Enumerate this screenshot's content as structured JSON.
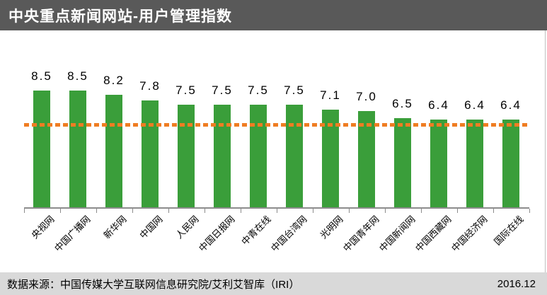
{
  "header": {
    "title": "中央重点新闻网站-用户管理指数"
  },
  "footer": {
    "source_label": "数据来源：中国传媒大学互联网信息研究院/艾利艾智库（IRI）",
    "date": "2016.12"
  },
  "colors": {
    "header_bg": "#595959",
    "header_text": "#ffffff",
    "footer_bg": "#d9d9d9",
    "footer_text": "#000000",
    "bar": "#3a9e3a",
    "reference_line": "#ef7d22",
    "axis": "#8c8c8c",
    "label_text": "#000000"
  },
  "chart_data": {
    "type": "bar",
    "title": "中央重点新闻网站-用户管理指数",
    "categories": [
      "央视网",
      "中国广播网",
      "新华网",
      "中国网",
      "人民网",
      "中国日报网",
      "中青在线",
      "中国台湾网",
      "光明网",
      "中国青年网",
      "中国新闻网",
      "中国西藏网",
      "中国经济网",
      "国际在线"
    ],
    "values": [
      8.5,
      8.5,
      8.2,
      7.8,
      7.5,
      7.5,
      7.5,
      7.5,
      7.1,
      7.0,
      6.5,
      6.4,
      6.4,
      6.4
    ],
    "reference_line": {
      "value": 6.0,
      "style": "dashed",
      "color": "#ef7d22"
    },
    "xlabel": "",
    "ylabel": "",
    "ylim": [
      0,
      10
    ],
    "value_axis_visible": false,
    "grid": false,
    "legend": false,
    "data_labels": true,
    "x_tick_rotation": 45,
    "source": "数据来源：中国传媒大学互联网信息研究院/艾利艾智库（IRI）",
    "period": "2016.12"
  }
}
